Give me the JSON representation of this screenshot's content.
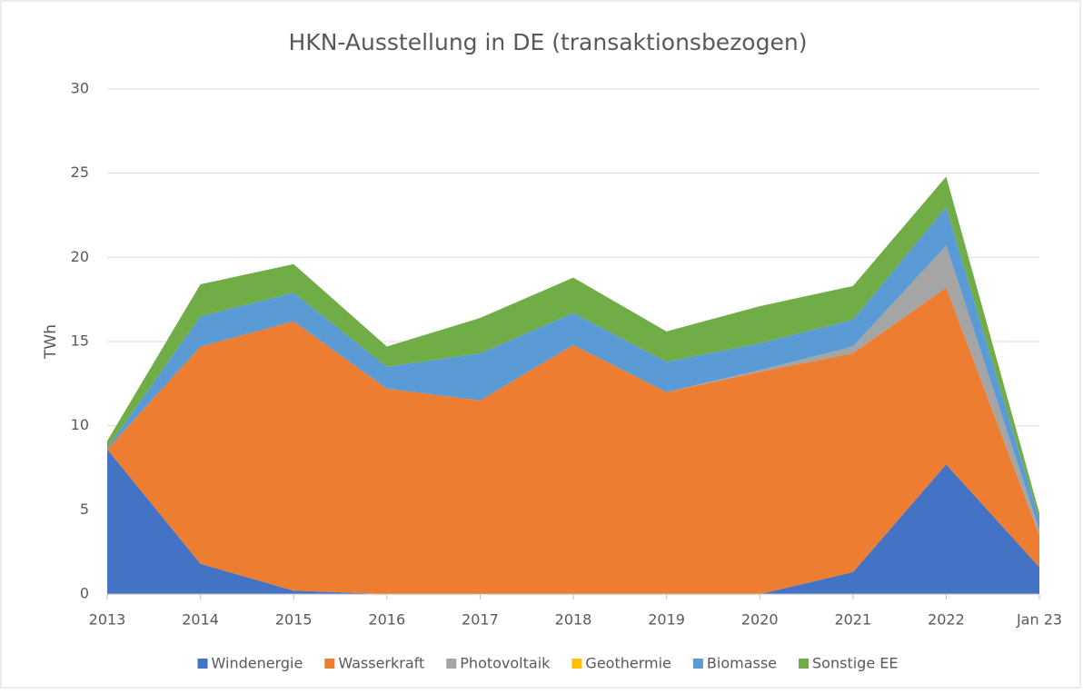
{
  "chart_data": {
    "type": "area",
    "stacked": true,
    "title": "HKN-Ausstellung in DE (transaktionsbezogen)",
    "y_label": "TWh",
    "categories": [
      "2013",
      "2014",
      "2015",
      "2016",
      "2017",
      "2018",
      "2019",
      "2020",
      "2021",
      "2022",
      "Jan 23"
    ],
    "ylim": [
      0,
      30
    ],
    "yticks": [
      0,
      5,
      10,
      15,
      20,
      25,
      30
    ],
    "grid": true,
    "legend": "bottom",
    "series": [
      {
        "name": "Windenergie",
        "color": "#4472c4",
        "values": [
          8.6,
          1.8,
          0.2,
          0,
          0,
          0,
          0,
          0,
          1.3,
          7.7,
          1.6
        ]
      },
      {
        "name": "Wasserkraft",
        "color": "#ed7d31",
        "values": [
          0,
          12.9,
          16.0,
          12.2,
          11.5,
          14.8,
          12.0,
          13.2,
          13.0,
          10.5,
          1.9
        ]
      },
      {
        "name": "Photovoltaik",
        "color": "#a5a5a5",
        "values": [
          0,
          0,
          0,
          0,
          0,
          0,
          0,
          0.1,
          0.4,
          2.5,
          0.3
        ]
      },
      {
        "name": "Geothermie",
        "color": "#ffc000",
        "values": [
          0,
          0,
          0,
          0,
          0,
          0,
          0,
          0,
          0,
          0,
          0
        ]
      },
      {
        "name": "Biomasse",
        "color": "#5b9bd5",
        "values": [
          0.1,
          1.8,
          1.7,
          1.3,
          2.8,
          1.9,
          1.8,
          1.6,
          1.6,
          2.3,
          0.6
        ]
      },
      {
        "name": "Sonstige EE",
        "color": "#70ad47",
        "values": [
          0.4,
          1.9,
          1.7,
          1.2,
          2.1,
          2.1,
          1.8,
          2.2,
          2.0,
          1.8,
          0.4
        ]
      }
    ]
  }
}
